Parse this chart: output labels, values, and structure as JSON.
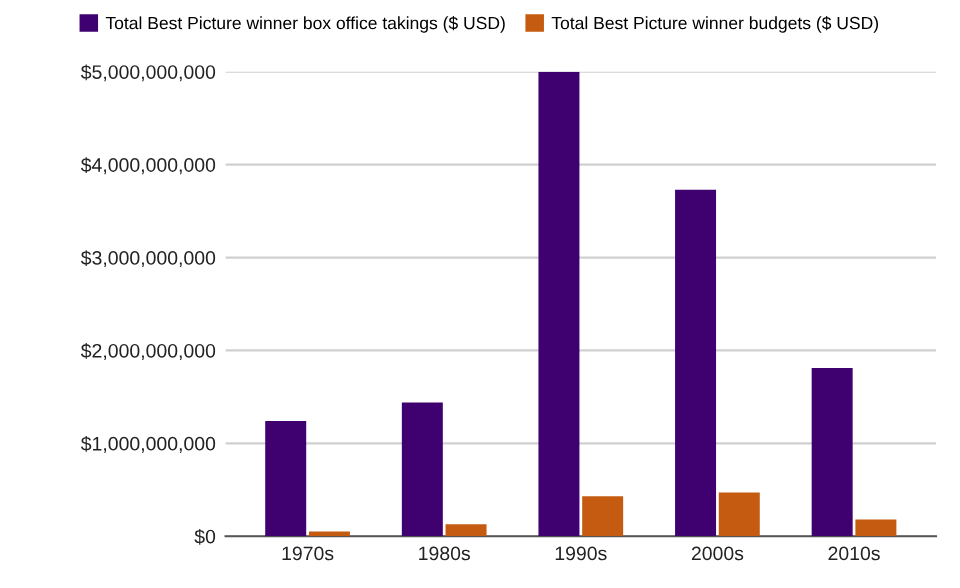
{
  "chart_data": {
    "type": "bar",
    "categories": [
      "1970s",
      "1980s",
      "1990s",
      "2000s",
      "2010s"
    ],
    "series": [
      {
        "name": "Total Best Picture winner box office takings ($ USD)",
        "color": "#3f0070",
        "values": [
          1240000000,
          1440000000,
          5000000000,
          3730000000,
          1810000000
        ]
      },
      {
        "name": "Total Best Picture winner budgets ($ USD)",
        "color": "#c55a11",
        "values": [
          50000000,
          130000000,
          430000000,
          470000000,
          180000000
        ]
      }
    ],
    "ylim": [
      0,
      5000000000
    ],
    "yticks": [
      {
        "value": 0,
        "label": "$0"
      },
      {
        "value": 1000000000,
        "label": "$1,000,000,000"
      },
      {
        "value": 2000000000,
        "label": "$2,000,000,000"
      },
      {
        "value": 3000000000,
        "label": "$3,000,000,000"
      },
      {
        "value": 4000000000,
        "label": "$4,000,000,000"
      },
      {
        "value": 5000000000,
        "label": "$5,000,000,000"
      }
    ],
    "grid": "y",
    "legend": "top"
  }
}
